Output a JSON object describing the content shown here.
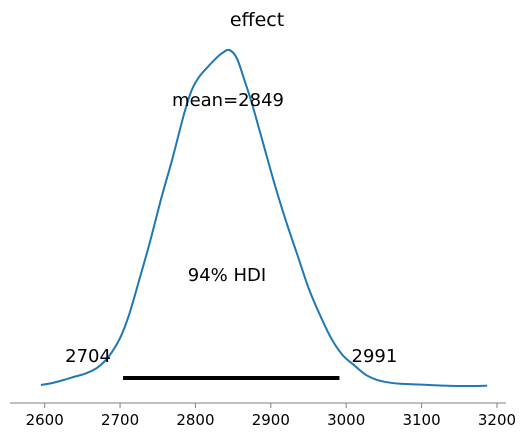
{
  "chart_data": {
    "type": "line",
    "title": "effect",
    "xlabel": "",
    "ylabel": "",
    "xlim": [
      2554,
      3212
    ],
    "ylim": [
      0,
      1
    ],
    "x_ticks": [
      2600,
      2700,
      2800,
      2900,
      3000,
      3100,
      3200
    ],
    "x_tick_labels": [
      "2600",
      "2700",
      "2800",
      "2900",
      "3000",
      "3100",
      "3200"
    ],
    "grid": false,
    "line_color": "#1f77b4",
    "series": [
      {
        "x": [
          2595,
          2610,
          2625,
          2640,
          2655,
          2670,
          2685,
          2700,
          2712,
          2725,
          2740,
          2755,
          2770,
          2785,
          2795,
          2805,
          2815,
          2825,
          2835,
          2845,
          2855,
          2865,
          2875,
          2890,
          2905,
          2920,
          2935,
          2950,
          2965,
          2980,
          2995,
          3010,
          3025,
          3040,
          3055,
          3070,
          3090,
          3110,
          3130,
          3150,
          3170,
          3187
        ],
        "y": [
          0.0,
          0.006,
          0.015,
          0.025,
          0.035,
          0.052,
          0.085,
          0.14,
          0.21,
          0.31,
          0.43,
          0.56,
          0.68,
          0.81,
          0.88,
          0.92,
          0.946,
          0.97,
          0.99,
          1.0,
          0.975,
          0.91,
          0.84,
          0.72,
          0.6,
          0.49,
          0.39,
          0.29,
          0.21,
          0.14,
          0.09,
          0.06,
          0.032,
          0.016,
          0.008,
          0.004,
          0.002,
          0.0,
          -0.002,
          -0.003,
          -0.003,
          -0.002
        ]
      }
    ],
    "mean_label": "mean=2849",
    "hdi": {
      "label": "94% HDI",
      "low": 2704,
      "high": 2991,
      "low_label": "2704",
      "high_label": "2991"
    }
  }
}
